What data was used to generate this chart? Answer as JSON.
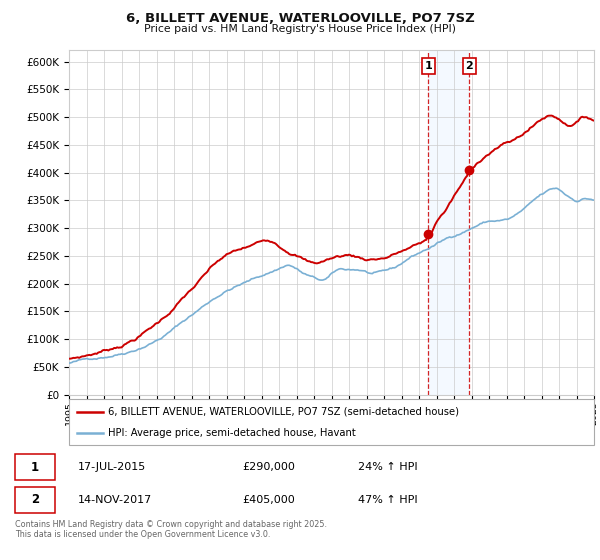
{
  "title": "6, BILLETT AVENUE, WATERLOOVILLE, PO7 7SZ",
  "subtitle": "Price paid vs. HM Land Registry's House Price Index (HPI)",
  "legend_label_red": "6, BILLETT AVENUE, WATERLOOVILLE, PO7 7SZ (semi-detached house)",
  "legend_label_blue": "HPI: Average price, semi-detached house, Havant",
  "annotation1_label": "1",
  "annotation1_date": "17-JUL-2015",
  "annotation1_price": "£290,000",
  "annotation1_hpi": "24% ↑ HPI",
  "annotation2_label": "2",
  "annotation2_date": "14-NOV-2017",
  "annotation2_price": "£405,000",
  "annotation2_hpi": "47% ↑ HPI",
  "footer": "Contains HM Land Registry data © Crown copyright and database right 2025.\nThis data is licensed under the Open Government Licence v3.0.",
  "red_color": "#cc0000",
  "blue_color": "#7ab0d4",
  "highlight_color": "#ddeeff",
  "ylim_min": 0,
  "ylim_max": 620000,
  "year_start": 1995,
  "year_end": 2025,
  "sale1_year": 2015.54,
  "sale1_price": 290000,
  "sale2_year": 2017.87,
  "sale2_price": 405000,
  "background_color": "#ffffff",
  "grid_color": "#cccccc"
}
